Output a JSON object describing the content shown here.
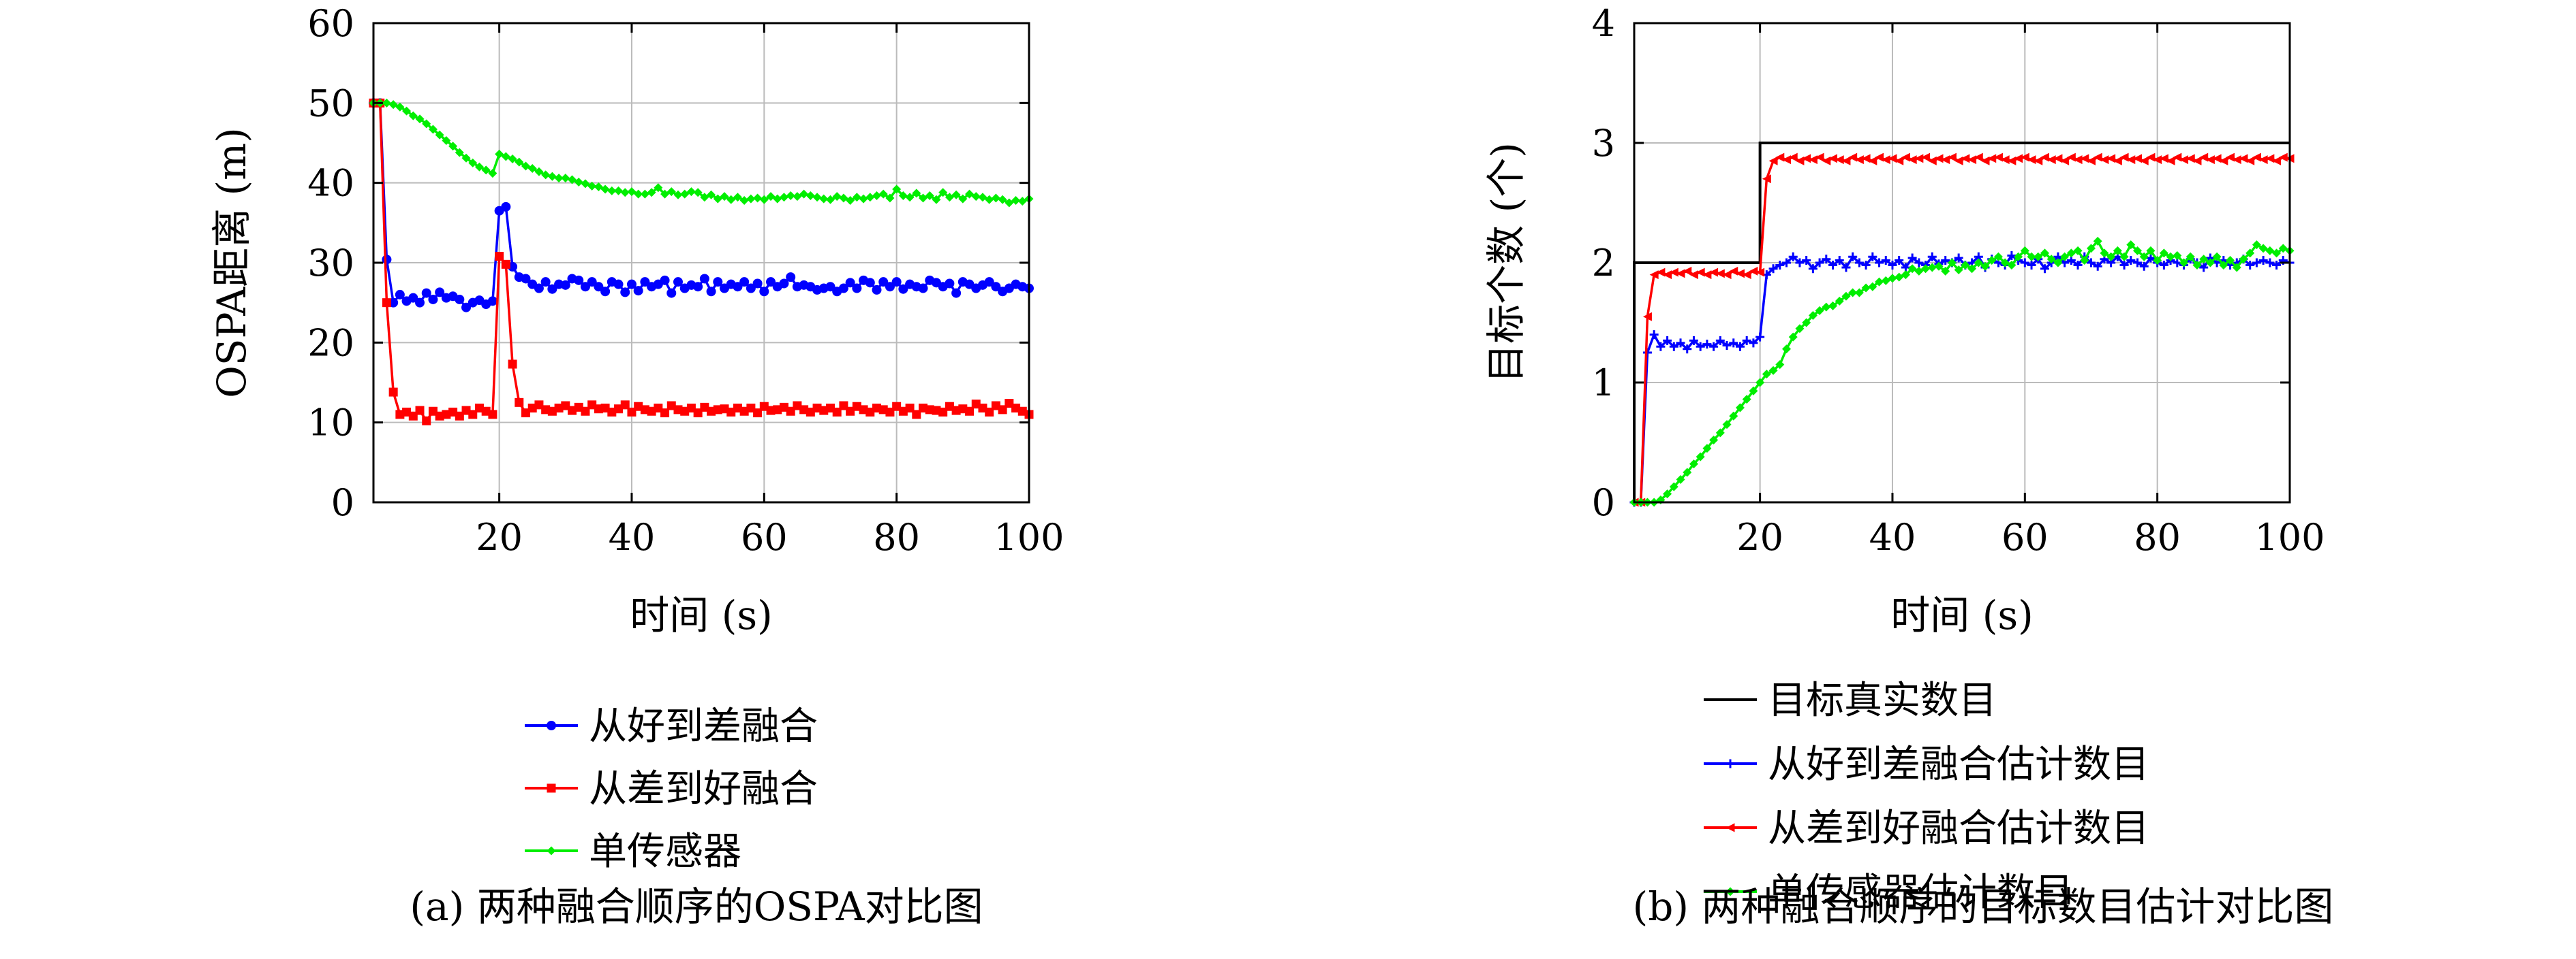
{
  "chart_data": [
    {
      "type": "line",
      "caption": "(a) 两种融合顺序的OSPA对比图",
      "xlabel": "时间 (s)",
      "ylabel": "OSPA距离 (m)",
      "xlim": [
        1,
        100
      ],
      "ylim": [
        0,
        60
      ],
      "xticks": [
        20,
        40,
        60,
        80,
        100
      ],
      "yticks": [
        0,
        10,
        20,
        30,
        40,
        50,
        60
      ],
      "grid": true,
      "legend_position": "below",
      "x": [
        1,
        2,
        3,
        4,
        5,
        6,
        7,
        8,
        9,
        10,
        11,
        12,
        13,
        14,
        15,
        16,
        17,
        18,
        19,
        20,
        21,
        22,
        23,
        24,
        25,
        26,
        27,
        28,
        29,
        30,
        31,
        32,
        33,
        34,
        35,
        36,
        37,
        38,
        39,
        40,
        41,
        42,
        43,
        44,
        45,
        46,
        47,
        48,
        49,
        50,
        51,
        52,
        53,
        54,
        55,
        56,
        57,
        58,
        59,
        60,
        61,
        62,
        63,
        64,
        65,
        66,
        67,
        68,
        69,
        70,
        71,
        72,
        73,
        74,
        75,
        76,
        77,
        78,
        79,
        80,
        81,
        82,
        83,
        84,
        85,
        86,
        87,
        88,
        89,
        90,
        91,
        92,
        93,
        94,
        95,
        96,
        97,
        98,
        99,
        100
      ],
      "series": [
        {
          "name": "从好到差融合",
          "color": "#0000ff",
          "marker": "circle",
          "values": [
            50.0,
            50.0,
            30.4,
            25.0,
            26.0,
            25.2,
            25.6,
            25.0,
            26.2,
            25.4,
            26.3,
            25.6,
            25.8,
            25.4,
            24.4,
            25.0,
            25.3,
            24.8,
            25.2,
            36.5,
            37.0,
            29.5,
            28.2,
            28.0,
            27.3,
            26.8,
            27.6,
            26.7,
            27.3,
            27.2,
            28.0,
            27.8,
            27.0,
            27.6,
            27.0,
            26.4,
            27.6,
            27.3,
            26.3,
            27.3,
            26.5,
            27.6,
            27.0,
            27.3,
            27.8,
            26.2,
            27.6,
            26.8,
            27.2,
            27.0,
            28.0,
            26.4,
            27.6,
            26.8,
            27.3,
            27.0,
            27.6,
            26.8,
            27.4,
            26.4,
            27.6,
            27.0,
            27.4,
            28.2,
            27.0,
            27.2,
            27.0,
            26.6,
            26.8,
            27.0,
            26.4,
            26.8,
            27.5,
            26.8,
            27.8,
            27.5,
            26.6,
            27.6,
            27.0,
            27.6,
            26.7,
            27.3,
            27.0,
            26.8,
            27.8,
            27.5,
            27.0,
            27.4,
            26.2,
            27.6,
            27.3,
            26.8,
            27.2,
            27.6,
            27.0,
            26.4,
            26.8,
            27.3,
            27.0,
            26.8
          ]
        },
        {
          "name": "从差到好融合",
          "color": "#ff0000",
          "marker": "square",
          "values": [
            50.0,
            50.0,
            25.0,
            13.8,
            11.0,
            11.3,
            10.8,
            11.5,
            10.2,
            11.4,
            10.8,
            11.0,
            11.3,
            10.8,
            11.5,
            11.0,
            11.8,
            11.4,
            11.0,
            30.8,
            29.8,
            17.3,
            12.5,
            11.2,
            11.8,
            12.2,
            11.6,
            11.4,
            11.8,
            12.1,
            11.5,
            11.9,
            11.4,
            12.2,
            11.7,
            11.8,
            11.3,
            11.7,
            12.2,
            11.3,
            12.0,
            11.6,
            11.4,
            11.8,
            11.2,
            12.1,
            11.6,
            11.4,
            11.8,
            11.2,
            11.9,
            11.4,
            11.6,
            11.7,
            11.3,
            11.8,
            11.4,
            11.8,
            11.2,
            12.0,
            11.5,
            11.6,
            11.9,
            11.4,
            12.1,
            11.6,
            11.3,
            11.8,
            11.5,
            11.8,
            11.3,
            12.1,
            11.4,
            12.0,
            11.6,
            11.3,
            11.8,
            11.6,
            11.3,
            12.0,
            11.4,
            11.8,
            11.0,
            11.8,
            11.6,
            11.5,
            11.3,
            12.0,
            11.5,
            11.7,
            11.4,
            12.3,
            11.8,
            11.3,
            12.1,
            11.6,
            12.4,
            11.8,
            11.4,
            11.0
          ]
        },
        {
          "name": "单传感器",
          "color": "#00ee00",
          "marker": "diamond",
          "values": [
            50.0,
            50.0,
            50.0,
            49.8,
            49.5,
            49.0,
            48.4,
            48.0,
            47.4,
            46.7,
            46.0,
            45.3,
            44.6,
            43.8,
            43.1,
            42.5,
            42.0,
            41.6,
            41.2,
            43.6,
            43.3,
            43.0,
            42.6,
            42.1,
            41.8,
            41.4,
            41.0,
            40.8,
            40.6,
            40.6,
            40.4,
            40.1,
            39.9,
            39.6,
            39.5,
            39.2,
            39.0,
            39.0,
            38.8,
            38.9,
            38.6,
            38.6,
            38.8,
            39.4,
            38.6,
            38.9,
            38.5,
            38.6,
            38.9,
            38.8,
            38.2,
            38.5,
            38.0,
            38.3,
            37.9,
            38.2,
            37.8,
            38.0,
            38.1,
            37.9,
            38.3,
            38.0,
            38.2,
            38.4,
            38.3,
            38.6,
            38.4,
            38.2,
            38.0,
            37.9,
            38.3,
            38.1,
            37.8,
            38.2,
            38.0,
            38.2,
            38.4,
            38.6,
            38.1,
            39.2,
            38.4,
            38.2,
            38.7,
            38.1,
            38.4,
            37.9,
            38.8,
            38.2,
            38.5,
            38.0,
            38.6,
            38.3,
            38.2,
            37.9,
            38.1,
            37.9,
            37.5,
            37.8,
            37.7,
            38.0
          ]
        }
      ]
    },
    {
      "type": "line",
      "caption": "(b) 两种融合顺序的目标数目估计对比图",
      "xlabel": "时间 (s)",
      "ylabel": "目标个数 (个)",
      "xlim": [
        1,
        100
      ],
      "ylim": [
        0,
        4
      ],
      "xticks": [
        20,
        40,
        60,
        80,
        100
      ],
      "yticks": [
        0,
        1,
        2,
        3,
        4
      ],
      "grid": true,
      "legend_position": "below",
      "x": [
        1,
        2,
        3,
        4,
        5,
        6,
        7,
        8,
        9,
        10,
        11,
        12,
        13,
        14,
        15,
        16,
        17,
        18,
        19,
        20,
        21,
        22,
        23,
        24,
        25,
        26,
        27,
        28,
        29,
        30,
        31,
        32,
        33,
        34,
        35,
        36,
        37,
        38,
        39,
        40,
        41,
        42,
        43,
        44,
        45,
        46,
        47,
        48,
        49,
        50,
        51,
        52,
        53,
        54,
        55,
        56,
        57,
        58,
        59,
        60,
        61,
        62,
        63,
        64,
        65,
        66,
        67,
        68,
        69,
        70,
        71,
        72,
        73,
        74,
        75,
        76,
        77,
        78,
        79,
        80,
        81,
        82,
        83,
        84,
        85,
        86,
        87,
        88,
        89,
        90,
        91,
        92,
        93,
        94,
        95,
        96,
        97,
        98,
        99,
        100
      ],
      "series": [
        {
          "name": "目标真实数目",
          "color": "#000000",
          "marker": "none",
          "step_x": [
            1,
            1,
            20,
            20,
            100
          ],
          "step_y": [
            0,
            2,
            2,
            3,
            3
          ]
        },
        {
          "name": "从好到差融合估计数目",
          "color": "#0000ff",
          "marker": "plus",
          "values": [
            0.0,
            0.0,
            1.25,
            1.4,
            1.3,
            1.35,
            1.3,
            1.33,
            1.28,
            1.35,
            1.3,
            1.32,
            1.3,
            1.35,
            1.31,
            1.33,
            1.3,
            1.35,
            1.33,
            1.38,
            1.9,
            1.95,
            1.98,
            2.0,
            2.05,
            2.0,
            2.02,
            1.95,
            2.0,
            2.03,
            1.98,
            2.02,
            1.96,
            2.05,
            2.0,
            1.98,
            2.05,
            2.0,
            2.02,
            1.98,
            2.02,
            1.96,
            2.04,
            2.0,
            1.98,
            2.05,
            1.99,
            2.02,
            2.0,
            2.04,
            1.98,
            2.0,
            2.05,
            1.96,
            2.03,
            2.0,
            1.98,
            2.06,
            2.02,
            2.0,
            1.98,
            2.03,
            1.95,
            2.0,
            2.05,
            2.0,
            2.02,
            1.98,
            2.05,
            2.0,
            1.97,
            2.03,
            2.0,
            2.05,
            1.98,
            2.02,
            2.0,
            1.97,
            2.04,
            2.0,
            1.98,
            2.02,
            2.0,
            1.98,
            2.03,
            2.0,
            1.96,
            2.04,
            2.0,
            2.02,
            1.98,
            2.0,
            2.03,
            1.98,
            2.0,
            2.02,
            2.0,
            1.98,
            2.02,
            2.0
          ]
        },
        {
          "name": "从差到好融合估计数目",
          "color": "#ff0000",
          "marker": "triangle",
          "values": [
            0.0,
            0.0,
            1.55,
            1.9,
            1.92,
            1.9,
            1.92,
            1.91,
            1.93,
            1.9,
            1.92,
            1.9,
            1.92,
            1.91,
            1.9,
            1.93,
            1.91,
            1.9,
            1.93,
            1.92,
            2.7,
            2.85,
            2.88,
            2.86,
            2.88,
            2.85,
            2.87,
            2.86,
            2.88,
            2.85,
            2.87,
            2.86,
            2.85,
            2.88,
            2.86,
            2.87,
            2.85,
            2.88,
            2.86,
            2.87,
            2.85,
            2.88,
            2.86,
            2.87,
            2.88,
            2.85,
            2.87,
            2.86,
            2.88,
            2.85,
            2.87,
            2.86,
            2.88,
            2.85,
            2.87,
            2.88,
            2.86,
            2.85,
            2.87,
            2.88,
            2.86,
            2.85,
            2.88,
            2.86,
            2.87,
            2.85,
            2.88,
            2.86,
            2.87,
            2.85,
            2.88,
            2.86,
            2.87,
            2.85,
            2.88,
            2.86,
            2.87,
            2.85,
            2.88,
            2.86,
            2.87,
            2.85,
            2.88,
            2.86,
            2.87,
            2.85,
            2.88,
            2.86,
            2.87,
            2.85,
            2.88,
            2.86,
            2.87,
            2.85,
            2.88,
            2.86,
            2.87,
            2.85,
            2.88,
            2.87
          ]
        },
        {
          "name": "单传感器估计数目",
          "color": "#00ee00",
          "marker": "diamond",
          "values": [
            0.0,
            0.0,
            0.0,
            0.0,
            0.02,
            0.07,
            0.13,
            0.19,
            0.25,
            0.32,
            0.38,
            0.45,
            0.52,
            0.58,
            0.65,
            0.72,
            0.79,
            0.86,
            0.93,
            1.0,
            1.07,
            1.1,
            1.15,
            1.28,
            1.38,
            1.45,
            1.5,
            1.56,
            1.6,
            1.63,
            1.64,
            1.68,
            1.72,
            1.75,
            1.75,
            1.79,
            1.8,
            1.84,
            1.85,
            1.87,
            1.88,
            1.9,
            1.95,
            1.93,
            1.95,
            1.96,
            1.97,
            1.93,
            2.0,
            1.94,
            1.98,
            1.95,
            2.0,
            1.97,
            2.02,
            2.05,
            2.0,
            1.98,
            2.05,
            2.1,
            2.05,
            2.05,
            2.08,
            2.03,
            2.0,
            2.05,
            2.08,
            2.1,
            2.02,
            2.12,
            2.18,
            2.08,
            2.05,
            2.1,
            2.05,
            2.15,
            2.1,
            2.05,
            2.1,
            2.02,
            2.08,
            2.05,
            2.06,
            2.0,
            2.05,
            1.98,
            2.03,
            2.0,
            2.05,
            1.98,
            2.02,
            1.96,
            2.03,
            2.08,
            2.15,
            2.12,
            2.1,
            2.08,
            2.12,
            2.1
          ]
        }
      ]
    }
  ]
}
